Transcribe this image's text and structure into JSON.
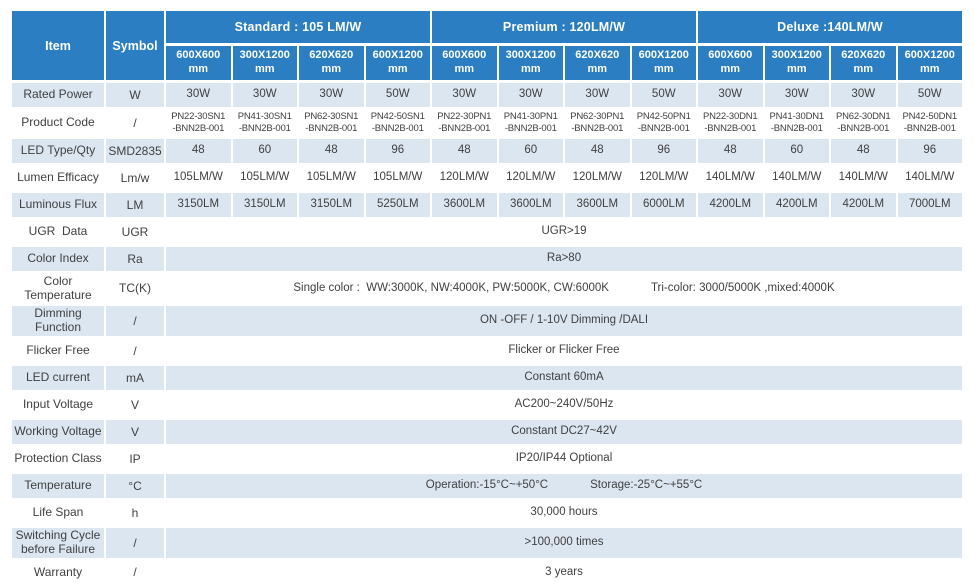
{
  "colors": {
    "header_blue": "#2b7ec2",
    "row_light": "#dce6f1",
    "row_white": "#ffffff",
    "body_text": "#404040",
    "header_text": "#ffffff"
  },
  "table": {
    "item_header": "Item",
    "symbol_header": "Symbol",
    "groups": [
      {
        "label": "Standard : 105 LM/W"
      },
      {
        "label": "Premium : 120LM/W"
      },
      {
        "label": "Deluxe :140LM/W"
      }
    ],
    "size_headers": [
      "600X600\nmm",
      "300X1200\nmm",
      "620X620\nmm",
      "600X1200\nmm",
      "600X600\nmm",
      "300X1200\nmm",
      "620X620\nmm",
      "600X1200\nmm",
      "600X600\nmm",
      "300X1200\nmm",
      "620X620\nmm",
      "600X1200\nmm"
    ],
    "rows": [
      {
        "item": "Rated Power",
        "symbol": "W",
        "values": [
          "30W",
          "30W",
          "30W",
          "50W",
          "30W",
          "30W",
          "30W",
          "50W",
          "30W",
          "30W",
          "30W",
          "50W"
        ]
      },
      {
        "item": "Product Code",
        "symbol": "/",
        "small": true,
        "values": [
          "PN22-30SN1\n-BNN2B-001",
          "PN41-30SN1\n-BNN2B-001",
          "PN62-30SN1\n-BNN2B-001",
          "PN42-50SN1\n-BNN2B-001",
          "PN22-30PN1\n-BNN2B-001",
          "PN41-30PN1\n-BNN2B-001",
          "PN62-30PN1\n-BNN2B-001",
          "PN42-50PN1\n-BNN2B-001",
          "PN22-30DN1\n-BNN2B-001",
          "PN41-30DN1\n-BNN2B-001",
          "PN62-30DN1\n-BNN2B-001",
          "PN42-50DN1\n-BNN2B-001"
        ]
      },
      {
        "item": "LED Type/Qty",
        "symbol": "SMD2835",
        "values": [
          "48",
          "60",
          "48",
          "96",
          "48",
          "60",
          "48",
          "96",
          "48",
          "60",
          "48",
          "96"
        ]
      },
      {
        "item": "Lumen Efficacy",
        "symbol": "Lm/w",
        "values": [
          "105LM/W",
          "105LM/W",
          "105LM/W",
          "105LM/W",
          "120LM/W",
          "120LM/W",
          "120LM/W",
          "120LM/W",
          "140LM/W",
          "140LM/W",
          "140LM/W",
          "140LM/W"
        ]
      },
      {
        "item": "Luminous Flux",
        "symbol": "LM",
        "values": [
          "3150LM",
          "3150LM",
          "3150LM",
          "5250LM",
          "3600LM",
          "3600LM",
          "3600LM",
          "6000LM",
          "4200LM",
          "4200LM",
          "4200LM",
          "7000LM"
        ]
      },
      {
        "item": "UGR  Data",
        "symbol": "UGR",
        "span": [
          "UGR>19"
        ]
      },
      {
        "item": "Color Index",
        "symbol": "Ra",
        "span": [
          "Ra>80"
        ]
      },
      {
        "item": "Color\nTemperature",
        "symbol": "TC(K)",
        "span": [
          "Single color :  WW:3000K, NW:4000K, PW:5000K, CW:6000K",
          "Tri-color: 3000/5000K ,mixed:4000K"
        ]
      },
      {
        "item": "Dimming\nFunction",
        "symbol": "/",
        "span": [
          "ON -OFF / 1-10V Dimming /DALI"
        ]
      },
      {
        "item": "Flicker Free",
        "symbol": "/",
        "span": [
          "Flicker or Flicker Free"
        ]
      },
      {
        "item": "LED current",
        "symbol": "mA",
        "span": [
          "Constant 60mA"
        ]
      },
      {
        "item": "Input Voltage",
        "symbol": "V",
        "span": [
          "AC200~240V/50Hz"
        ]
      },
      {
        "item": "Working Voltage",
        "symbol": "V",
        "span": [
          "Constant DC27~42V"
        ]
      },
      {
        "item": "Protection Class",
        "symbol": "IP",
        "span": [
          "IP20/IP44 Optional"
        ]
      },
      {
        "item": "Temperature",
        "symbol": "°C",
        "span": [
          "Operation:-15°C~+50°C",
          "Storage:-25°C~+55°C"
        ]
      },
      {
        "item": "Life Span",
        "symbol": "h",
        "span": [
          "30,000 hours"
        ]
      },
      {
        "item": "Switching Cycle\nbefore Failure",
        "symbol": "/",
        "span": [
          ">100,000 times"
        ]
      },
      {
        "item": "Warranty",
        "symbol": "/",
        "span": [
          "3 years"
        ]
      }
    ]
  }
}
